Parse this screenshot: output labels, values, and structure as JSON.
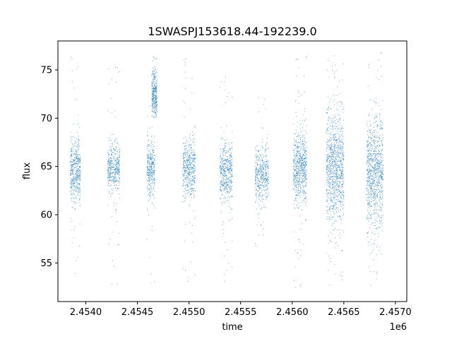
{
  "chart_data": {
    "type": "scatter",
    "title": "1SWASPJ153618.44-192239.0",
    "xlabel": "time",
    "ylabel": "flux",
    "x_offset_label": "1e6",
    "xlim": [
      2453730,
      2457110
    ],
    "ylim": [
      51.0,
      78.0
    ],
    "xticks": [
      2.454,
      2.4545,
      2.455,
      2.4555,
      2.456,
      2.4565,
      2.457
    ],
    "xtick_labels": [
      "2.4540",
      "2.4545",
      "2.4550",
      "2.4555",
      "2.4560",
      "2.4565",
      "2.4570"
    ],
    "yticks": [
      55,
      60,
      65,
      70,
      75
    ],
    "ytick_labels": [
      "55",
      "60",
      "65",
      "70",
      "75"
    ],
    "grid": false,
    "marker_color": "#1f77b4",
    "series": [
      {
        "clusters": [
          {
            "x_start": 2453850,
            "x_end": 2453950,
            "center": 64.5,
            "spread": 1.6,
            "min": 52.5,
            "max": 76.8,
            "count": 520
          },
          {
            "x_start": 2454210,
            "x_end": 2454330,
            "center": 64.8,
            "spread": 1.2,
            "min": 52.3,
            "max": 75.5,
            "count": 480
          },
          {
            "x_start": 2454590,
            "x_end": 2454670,
            "center": 64.8,
            "spread": 1.4,
            "min": 52.5,
            "max": 76.0,
            "count": 380
          },
          {
            "x_start": 2454640,
            "x_end": 2454690,
            "center": 72.3,
            "spread": 1.4,
            "min": 70.0,
            "max": 76.5,
            "count": 380
          },
          {
            "x_start": 2454940,
            "x_end": 2455060,
            "center": 64.8,
            "spread": 1.5,
            "min": 52.8,
            "max": 77.0,
            "count": 520
          },
          {
            "x_start": 2455300,
            "x_end": 2455420,
            "center": 64.3,
            "spread": 1.4,
            "min": 53.0,
            "max": 75.0,
            "count": 520
          },
          {
            "x_start": 2455640,
            "x_end": 2455770,
            "center": 64.2,
            "spread": 1.5,
            "min": 55.5,
            "max": 73.0,
            "count": 480
          },
          {
            "x_start": 2456010,
            "x_end": 2456140,
            "center": 64.8,
            "spread": 1.8,
            "min": 52.3,
            "max": 76.5,
            "count": 720
          },
          {
            "x_start": 2456330,
            "x_end": 2456500,
            "center": 64.8,
            "spread": 2.8,
            "min": 52.3,
            "max": 76.8,
            "count": 1100
          },
          {
            "x_start": 2456720,
            "x_end": 2456880,
            "center": 64.5,
            "spread": 2.6,
            "min": 52.5,
            "max": 76.8,
            "count": 1000
          }
        ]
      }
    ]
  }
}
